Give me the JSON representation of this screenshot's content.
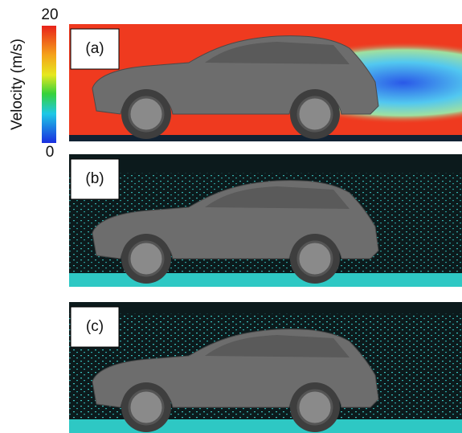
{
  "colorbar": {
    "label": "Velocity (m/s)",
    "max": 20,
    "min": 0
  },
  "panels": [
    {
      "label": "(a)"
    },
    {
      "label": "(b)"
    },
    {
      "label": "(c)"
    }
  ]
}
